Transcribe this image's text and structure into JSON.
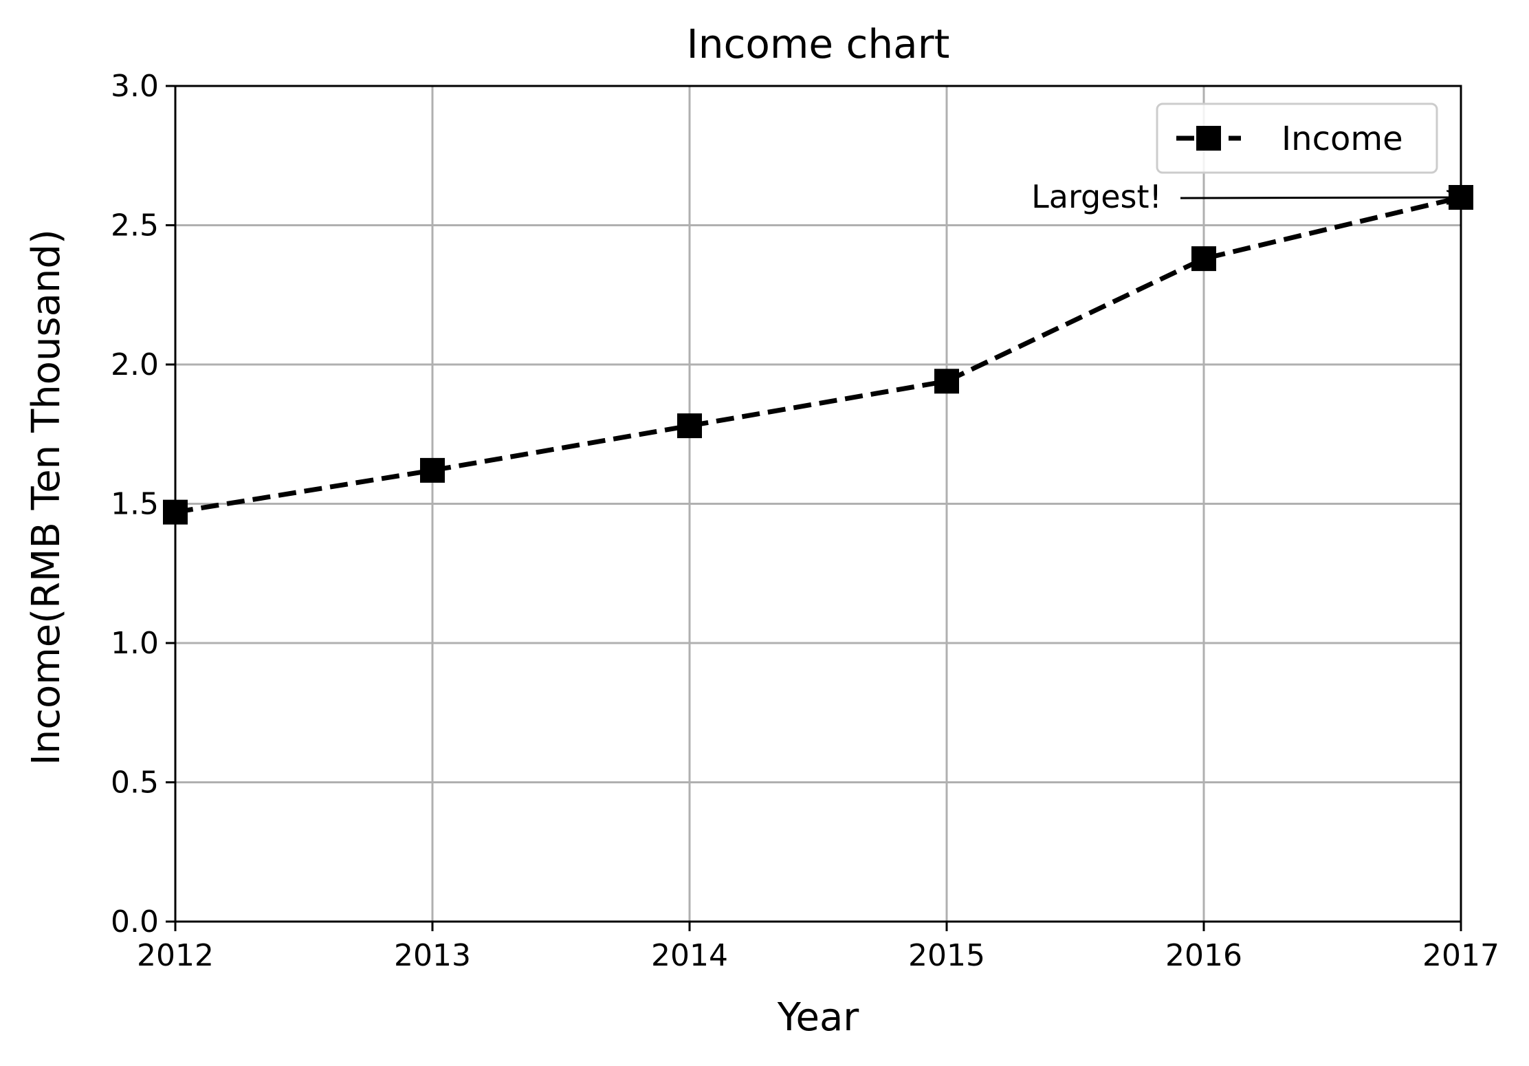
{
  "chart_data": {
    "type": "line",
    "title": "Income chart",
    "xlabel": "Year",
    "ylabel": "Income(RMB Ten Thousand)",
    "x": [
      2012,
      2013,
      2014,
      2015,
      2016,
      2017
    ],
    "xticks": [
      "2012",
      "2013",
      "2014",
      "2015",
      "2016",
      "2017"
    ],
    "yticks": [
      "0.0",
      "0.5",
      "1.0",
      "1.5",
      "2.0",
      "2.5",
      "3.0"
    ],
    "xlim": [
      2012,
      2017
    ],
    "ylim": [
      0,
      3
    ],
    "grid": true,
    "legend_position": "upper right",
    "series": [
      {
        "name": "Income",
        "values": [
          1.47,
          1.62,
          1.78,
          1.94,
          2.38,
          2.6
        ],
        "color": "#000000",
        "line_style": "dashed",
        "marker": "square"
      }
    ],
    "annotations": [
      {
        "text": "Largest!",
        "x": 2017,
        "y": 2.6
      }
    ]
  }
}
